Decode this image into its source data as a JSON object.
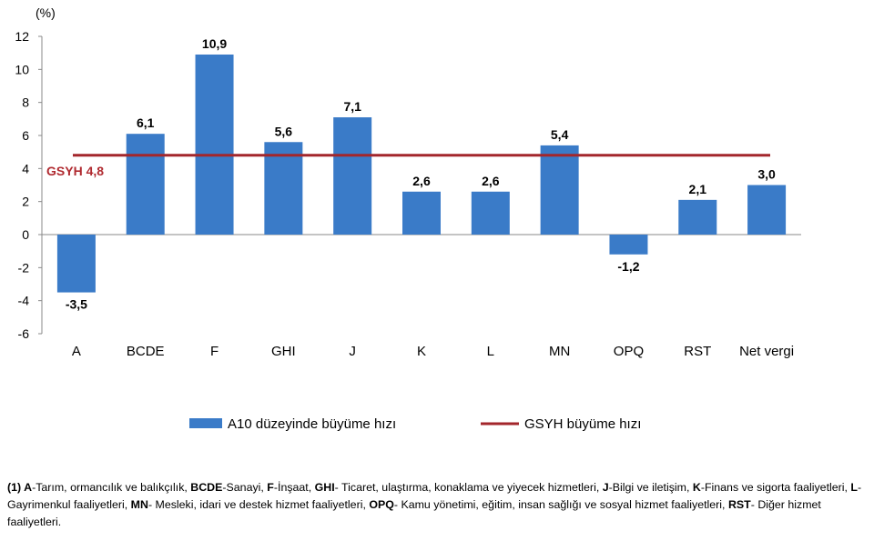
{
  "chart_data": {
    "type": "bar",
    "unit_label": "(%)",
    "categories": [
      "A",
      "BCDE",
      "F",
      "GHI",
      "J",
      "K",
      "L",
      "MN",
      "OPQ",
      "RST",
      "Net vergi"
    ],
    "series": [
      {
        "name": "A10 düzeyinde büyüme hızı",
        "values": [
          -3.5,
          6.1,
          10.9,
          5.6,
          7.1,
          2.6,
          2.6,
          5.4,
          -1.2,
          2.1,
          3.0
        ],
        "labels": [
          "-3,5",
          "6,1",
          "10,9",
          "5,6",
          "7,1",
          "2,6",
          "2,6",
          "5,4",
          "-1,2",
          "2,1",
          "3,0"
        ],
        "color": "#3a7bc8"
      },
      {
        "name": "GSYH büyüme hızı",
        "type": "line",
        "value": 4.8,
        "label": "GSYH 4,8",
        "color": "#a3262b"
      }
    ],
    "ylim": [
      -6,
      12
    ],
    "yticks": [
      -6,
      -4,
      -2,
      0,
      2,
      4,
      6,
      8,
      10,
      12
    ],
    "ytick_labels": [
      "-6",
      "-4",
      "-2",
      "0",
      "2",
      "4",
      "6",
      "8",
      "10",
      "12"
    ],
    "legend_position": "bottom",
    "grid": false
  },
  "footnote": [
    {
      "b": "(1) A",
      "t": "-Tarım, ormancılık ve balıkçılık, "
    },
    {
      "b": "BCDE",
      "t": "-Sanayi, "
    },
    {
      "b": "F",
      "t": "-İnşaat, "
    },
    {
      "b": "GHI",
      "t": "- Ticaret, ulaştırma, konaklama ve yiyecek hizmetleri, "
    },
    {
      "b": "J",
      "t": "-Bilgi ve iletişim, "
    },
    {
      "b": "K",
      "t": "-Finans ve sigorta faaliyetleri, "
    },
    {
      "b": "L",
      "t": "-Gayrimenkul faaliyetleri, "
    },
    {
      "b": "MN",
      "t": "- Mesleki, idari ve destek hizmet faaliyetleri, "
    },
    {
      "b": "OPQ",
      "t": "- Kamu yönetimi, eğitim, insan sağlığı ve sosyal hizmet faaliyetleri, "
    },
    {
      "b": "RST",
      "t": "- Diğer hizmet faaliyetleri."
    }
  ]
}
